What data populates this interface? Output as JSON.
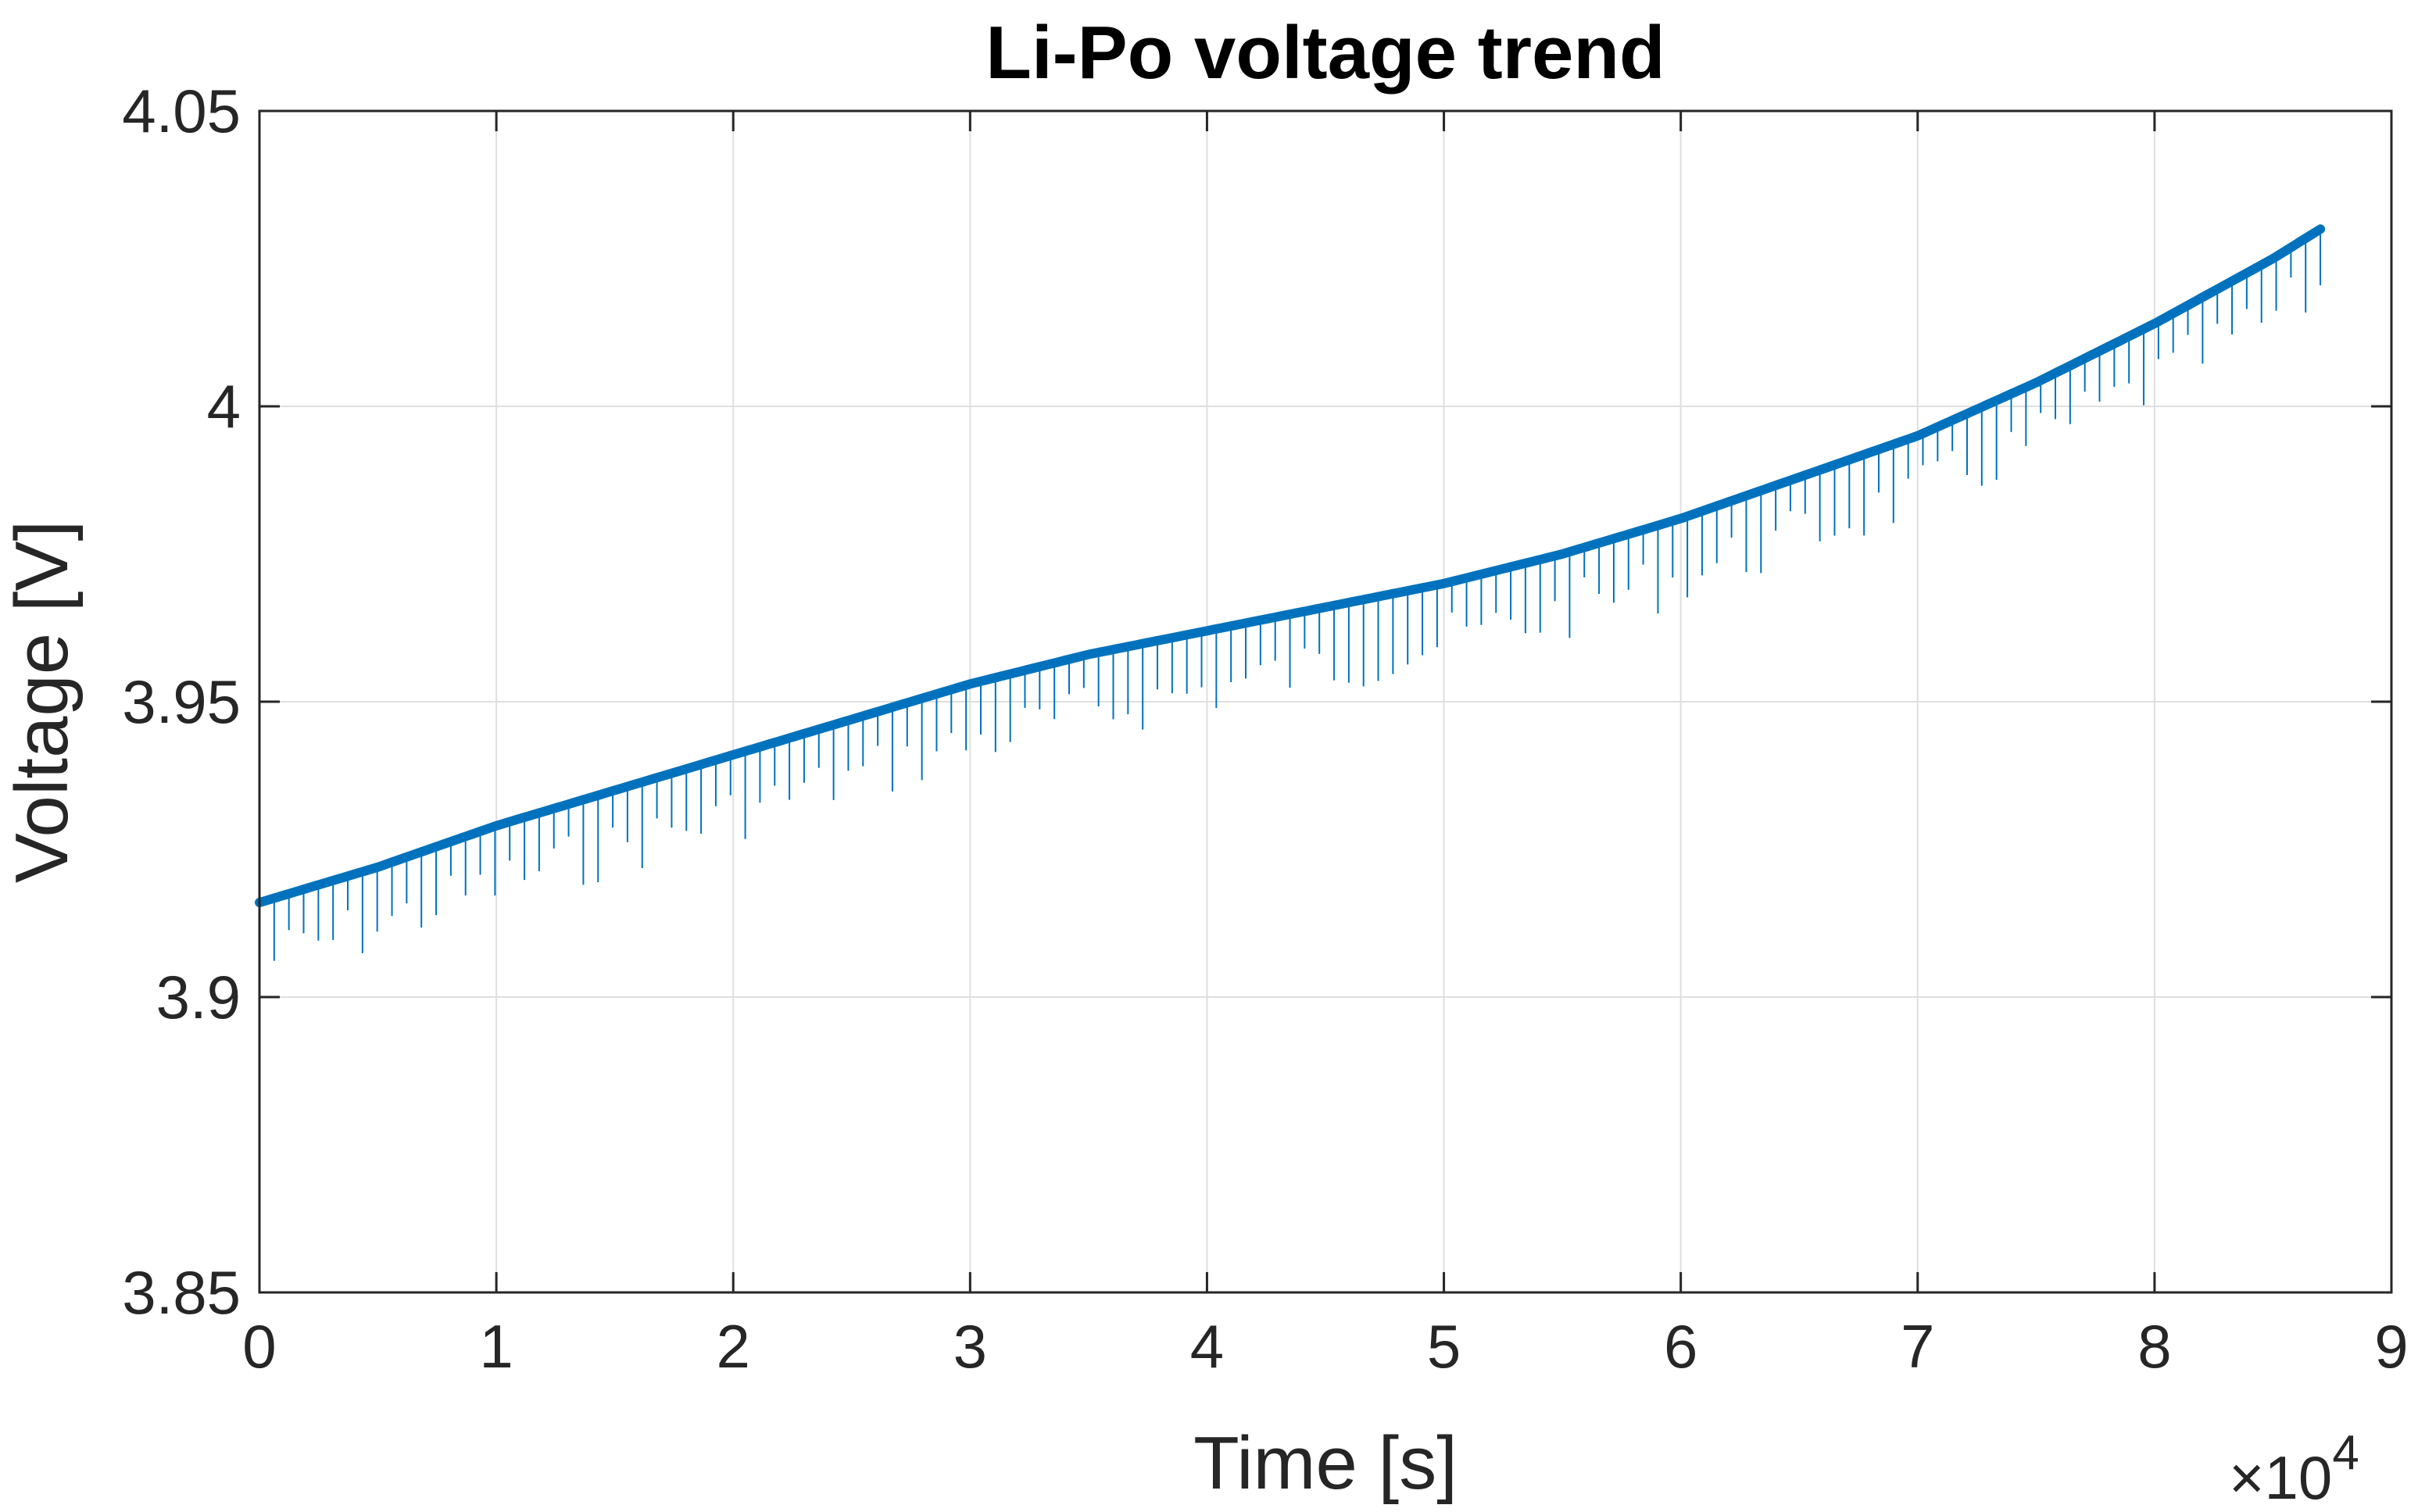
{
  "chart_data": {
    "type": "line",
    "title": "Li-Po voltage trend",
    "xlabel": "Time [s]",
    "ylabel": "Voltage [V]",
    "x_exponent_label": "×10",
    "x_exponent_power": "4",
    "xlim": [
      0,
      90000
    ],
    "ylim": [
      3.85,
      4.05
    ],
    "xticks": [
      0,
      10000,
      20000,
      30000,
      40000,
      50000,
      60000,
      70000,
      80000,
      90000
    ],
    "xtick_labels": [
      "0",
      "1",
      "2",
      "3",
      "4",
      "5",
      "6",
      "7",
      "8",
      "9"
    ],
    "yticks": [
      3.85,
      3.9,
      3.95,
      4.0,
      4.05
    ],
    "ytick_labels": [
      "3.85",
      "3.9",
      "3.95",
      "4",
      "4.05"
    ],
    "grid": true,
    "series": [
      {
        "name": "Voltage",
        "color": "#0072BD",
        "x": [
          0,
          5000,
          10000,
          15000,
          20000,
          25000,
          30000,
          35000,
          40000,
          45000,
          50000,
          55000,
          60000,
          65000,
          70000,
          75000,
          80000,
          85000,
          87000
        ],
        "y": [
          3.916,
          3.922,
          3.929,
          3.935,
          3.941,
          3.947,
          3.953,
          3.958,
          3.962,
          3.966,
          3.97,
          3.975,
          3.981,
          3.988,
          3.995,
          4.004,
          4.014,
          4.025,
          4.03
        ],
        "dip_depth_range": [
          0.005,
          0.015
        ]
      }
    ]
  }
}
